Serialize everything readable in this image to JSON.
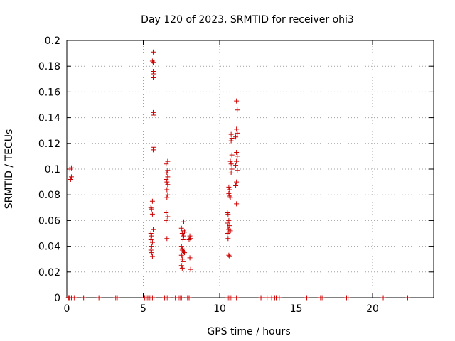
{
  "chart_data": {
    "type": "scatter",
    "title": "Day 120 of 2023, SRMTID for receiver ohi3",
    "xlabel": "GPS time / hours",
    "ylabel": "SRMTID / TECUs",
    "xlim": [
      0,
      24
    ],
    "ylim": [
      0,
      0.2
    ],
    "x_ticks": [
      0,
      5,
      10,
      15,
      20
    ],
    "x_tick_labels": [
      "0",
      "5",
      "10",
      "15",
      "20"
    ],
    "y_ticks": [
      0,
      0.02,
      0.04,
      0.06,
      0.08,
      0.1,
      0.12,
      0.14,
      0.16,
      0.18,
      0.2
    ],
    "y_tick_labels": [
      "0",
      "0.02",
      "0.04",
      "0.06",
      "0.08",
      "0.1",
      "0.12",
      "0.14",
      "0.16",
      "0.18",
      "0.2"
    ],
    "grid": true,
    "marker": "+",
    "color": "#cc0000",
    "series": [
      {
        "name": "SRMTID",
        "points": [
          [
            0.2,
            0.1
          ],
          [
            0.3,
            0.101
          ],
          [
            0.25,
            0.092
          ],
          [
            0.3,
            0.094
          ],
          [
            0.1,
            0
          ],
          [
            0.15,
            0
          ],
          [
            0.2,
            0
          ],
          [
            0.3,
            0
          ],
          [
            0.4,
            0
          ],
          [
            0.5,
            0
          ],
          [
            1.1,
            0
          ],
          [
            2.1,
            0
          ],
          [
            3.2,
            0
          ],
          [
            3.3,
            0
          ],
          [
            5.5,
            0.07
          ],
          [
            5.55,
            0.069
          ],
          [
            5.6,
            0.065
          ],
          [
            5.55,
            0.048
          ],
          [
            5.5,
            0.045
          ],
          [
            5.6,
            0.043
          ],
          [
            5.55,
            0.04
          ],
          [
            5.5,
            0.037
          ],
          [
            5.55,
            0.035
          ],
          [
            5.6,
            0.032
          ],
          [
            5.5,
            0.05
          ],
          [
            5.65,
            0.053
          ],
          [
            5.6,
            0.075
          ],
          [
            5.65,
            0.191
          ],
          [
            5.6,
            0.184
          ],
          [
            5.65,
            0.183
          ],
          [
            5.65,
            0.176
          ],
          [
            5.7,
            0.174
          ],
          [
            5.65,
            0.171
          ],
          [
            5.65,
            0.144
          ],
          [
            5.7,
            0.142
          ],
          [
            5.7,
            0.117
          ],
          [
            5.65,
            0.115
          ],
          [
            5.1,
            0
          ],
          [
            5.2,
            0
          ],
          [
            5.3,
            0
          ],
          [
            5.4,
            0
          ],
          [
            5.5,
            0
          ],
          [
            5.6,
            0
          ],
          [
            5.7,
            0
          ],
          [
            6.5,
            0.104
          ],
          [
            6.6,
            0.106
          ],
          [
            6.6,
            0.099
          ],
          [
            6.55,
            0.097
          ],
          [
            6.6,
            0.094
          ],
          [
            6.5,
            0.092
          ],
          [
            6.55,
            0.09
          ],
          [
            6.6,
            0.088
          ],
          [
            6.55,
            0.084
          ],
          [
            6.6,
            0.08
          ],
          [
            6.55,
            0.078
          ],
          [
            6.5,
            0.066
          ],
          [
            6.6,
            0.063
          ],
          [
            6.5,
            0.06
          ],
          [
            6.55,
            0.046
          ],
          [
            6.4,
            0
          ],
          [
            6.5,
            0
          ],
          [
            6.6,
            0
          ],
          [
            7.1,
            0
          ],
          [
            7.3,
            0
          ],
          [
            7.4,
            0
          ],
          [
            7.5,
            0
          ],
          [
            7.9,
            0
          ],
          [
            8,
            0
          ],
          [
            7.5,
            0.054
          ],
          [
            7.6,
            0.052
          ],
          [
            7.7,
            0.051
          ],
          [
            7.55,
            0.05
          ],
          [
            7.65,
            0.048
          ],
          [
            7.6,
            0.045
          ],
          [
            7.5,
            0.04
          ],
          [
            7.55,
            0.038
          ],
          [
            7.65,
            0.036
          ],
          [
            7.6,
            0.034
          ],
          [
            7.5,
            0.033
          ],
          [
            7.55,
            0.03
          ],
          [
            7.6,
            0.028
          ],
          [
            7.5,
            0.025
          ],
          [
            7.55,
            0.023
          ],
          [
            7.65,
            0.059
          ],
          [
            7.55,
            0.037
          ],
          [
            7.7,
            0.035
          ],
          [
            8.05,
            0.048
          ],
          [
            8.1,
            0.046
          ],
          [
            8.0,
            0.045
          ],
          [
            8.05,
            0.031
          ],
          [
            8.1,
            0.022
          ],
          [
            10.5,
            0
          ],
          [
            10.6,
            0
          ],
          [
            10.7,
            0
          ],
          [
            10.8,
            0
          ],
          [
            11,
            0
          ],
          [
            11.1,
            0
          ],
          [
            10.5,
            0.066
          ],
          [
            10.55,
            0.065
          ],
          [
            10.6,
            0.06
          ],
          [
            10.5,
            0.058
          ],
          [
            10.65,
            0.056
          ],
          [
            10.55,
            0.055
          ],
          [
            10.6,
            0.053
          ],
          [
            10.7,
            0.052
          ],
          [
            10.6,
            0.051
          ],
          [
            10.5,
            0.05
          ],
          [
            10.6,
            0.033
          ],
          [
            10.65,
            0.032
          ],
          [
            10.55,
            0.046
          ],
          [
            10.6,
            0.081
          ],
          [
            10.65,
            0.079
          ],
          [
            10.7,
            0.078
          ],
          [
            10.6,
            0.086
          ],
          [
            10.65,
            0.084
          ],
          [
            10.75,
            0.127
          ],
          [
            10.8,
            0.124
          ],
          [
            10.75,
            0.122
          ],
          [
            10.8,
            0.111
          ],
          [
            10.7,
            0.106
          ],
          [
            10.75,
            0.104
          ],
          [
            10.8,
            0.1
          ],
          [
            10.75,
            0.097
          ],
          [
            11.1,
            0.153
          ],
          [
            11.15,
            0.146
          ],
          [
            11.1,
            0.131
          ],
          [
            11.15,
            0.128
          ],
          [
            11.05,
            0.125
          ],
          [
            11.1,
            0.113
          ],
          [
            11.15,
            0.11
          ],
          [
            11.1,
            0.106
          ],
          [
            11.05,
            0.103
          ],
          [
            11.15,
            0.099
          ],
          [
            11.1,
            0.09
          ],
          [
            11.05,
            0.087
          ],
          [
            11.1,
            0.073
          ],
          [
            12.7,
            0
          ],
          [
            13.1,
            0
          ],
          [
            13.4,
            0
          ],
          [
            13.6,
            0
          ],
          [
            13.7,
            0
          ],
          [
            13.9,
            0
          ],
          [
            15.7,
            0
          ],
          [
            16.6,
            0
          ],
          [
            16.7,
            0
          ],
          [
            18.3,
            0
          ],
          [
            18.4,
            0
          ],
          [
            20.7,
            0
          ],
          [
            22.3,
            0
          ]
        ]
      }
    ]
  }
}
